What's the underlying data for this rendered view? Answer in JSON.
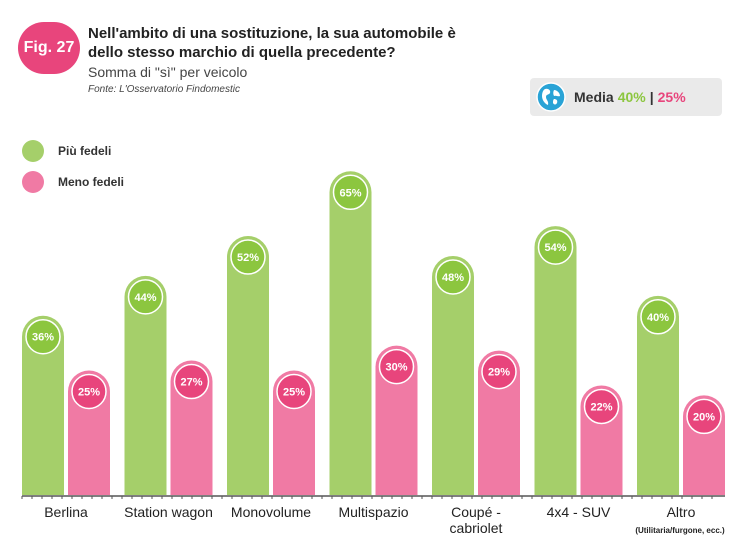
{
  "figure": {
    "badge": "Fig. 27"
  },
  "header": {
    "title": "Nell'ambito di una sostituzione, la sua automobile è dello stesso marchio di quella precedente?",
    "subtitle": "Somma di \"sì\" per veicolo",
    "source": "Fonte: L'Osservatorio Findomestic"
  },
  "media": {
    "label": "Media",
    "value_a": "40%",
    "separator": "|",
    "value_b": "25%",
    "icon": "globe-icon"
  },
  "colors": {
    "green": "#a5cf6a",
    "green_dark": "#8cc63f",
    "pink": "#f07aa4",
    "pink_dark": "#e8457c",
    "axis": "#555555"
  },
  "chart_data": {
    "type": "bar",
    "title": "Nell'ambito di una sostituzione, la sua automobile è dello stesso marchio di quella precedente?",
    "subtitle": "Somma di \"sì\" per veicolo",
    "categories": [
      "Berlina",
      "Station wagon",
      "Monovolume",
      "Multispazio",
      "Coupé - cabriolet",
      "4x4 - SUV",
      "Altro"
    ],
    "category_labels": [
      [
        "Berlina"
      ],
      [
        "Station wagon"
      ],
      [
        "Monovolume"
      ],
      [
        "Multispazio"
      ],
      [
        "Coupé -",
        "cabriolet"
      ],
      [
        "4x4 - SUV"
      ],
      [
        "Altro"
      ]
    ],
    "category_note": {
      "index": 6,
      "text": "(Utilitaria/furgone, ecc.)"
    },
    "series": [
      {
        "name": "Più fedeli",
        "values": [
          36,
          44,
          52,
          65,
          48,
          54,
          40
        ]
      },
      {
        "name": "Meno fedeli",
        "values": [
          25,
          27,
          25,
          30,
          29,
          22,
          20
        ]
      }
    ],
    "unit": "%",
    "ylim": [
      0,
      80
    ],
    "grid": false,
    "legend_position": "top-left"
  }
}
